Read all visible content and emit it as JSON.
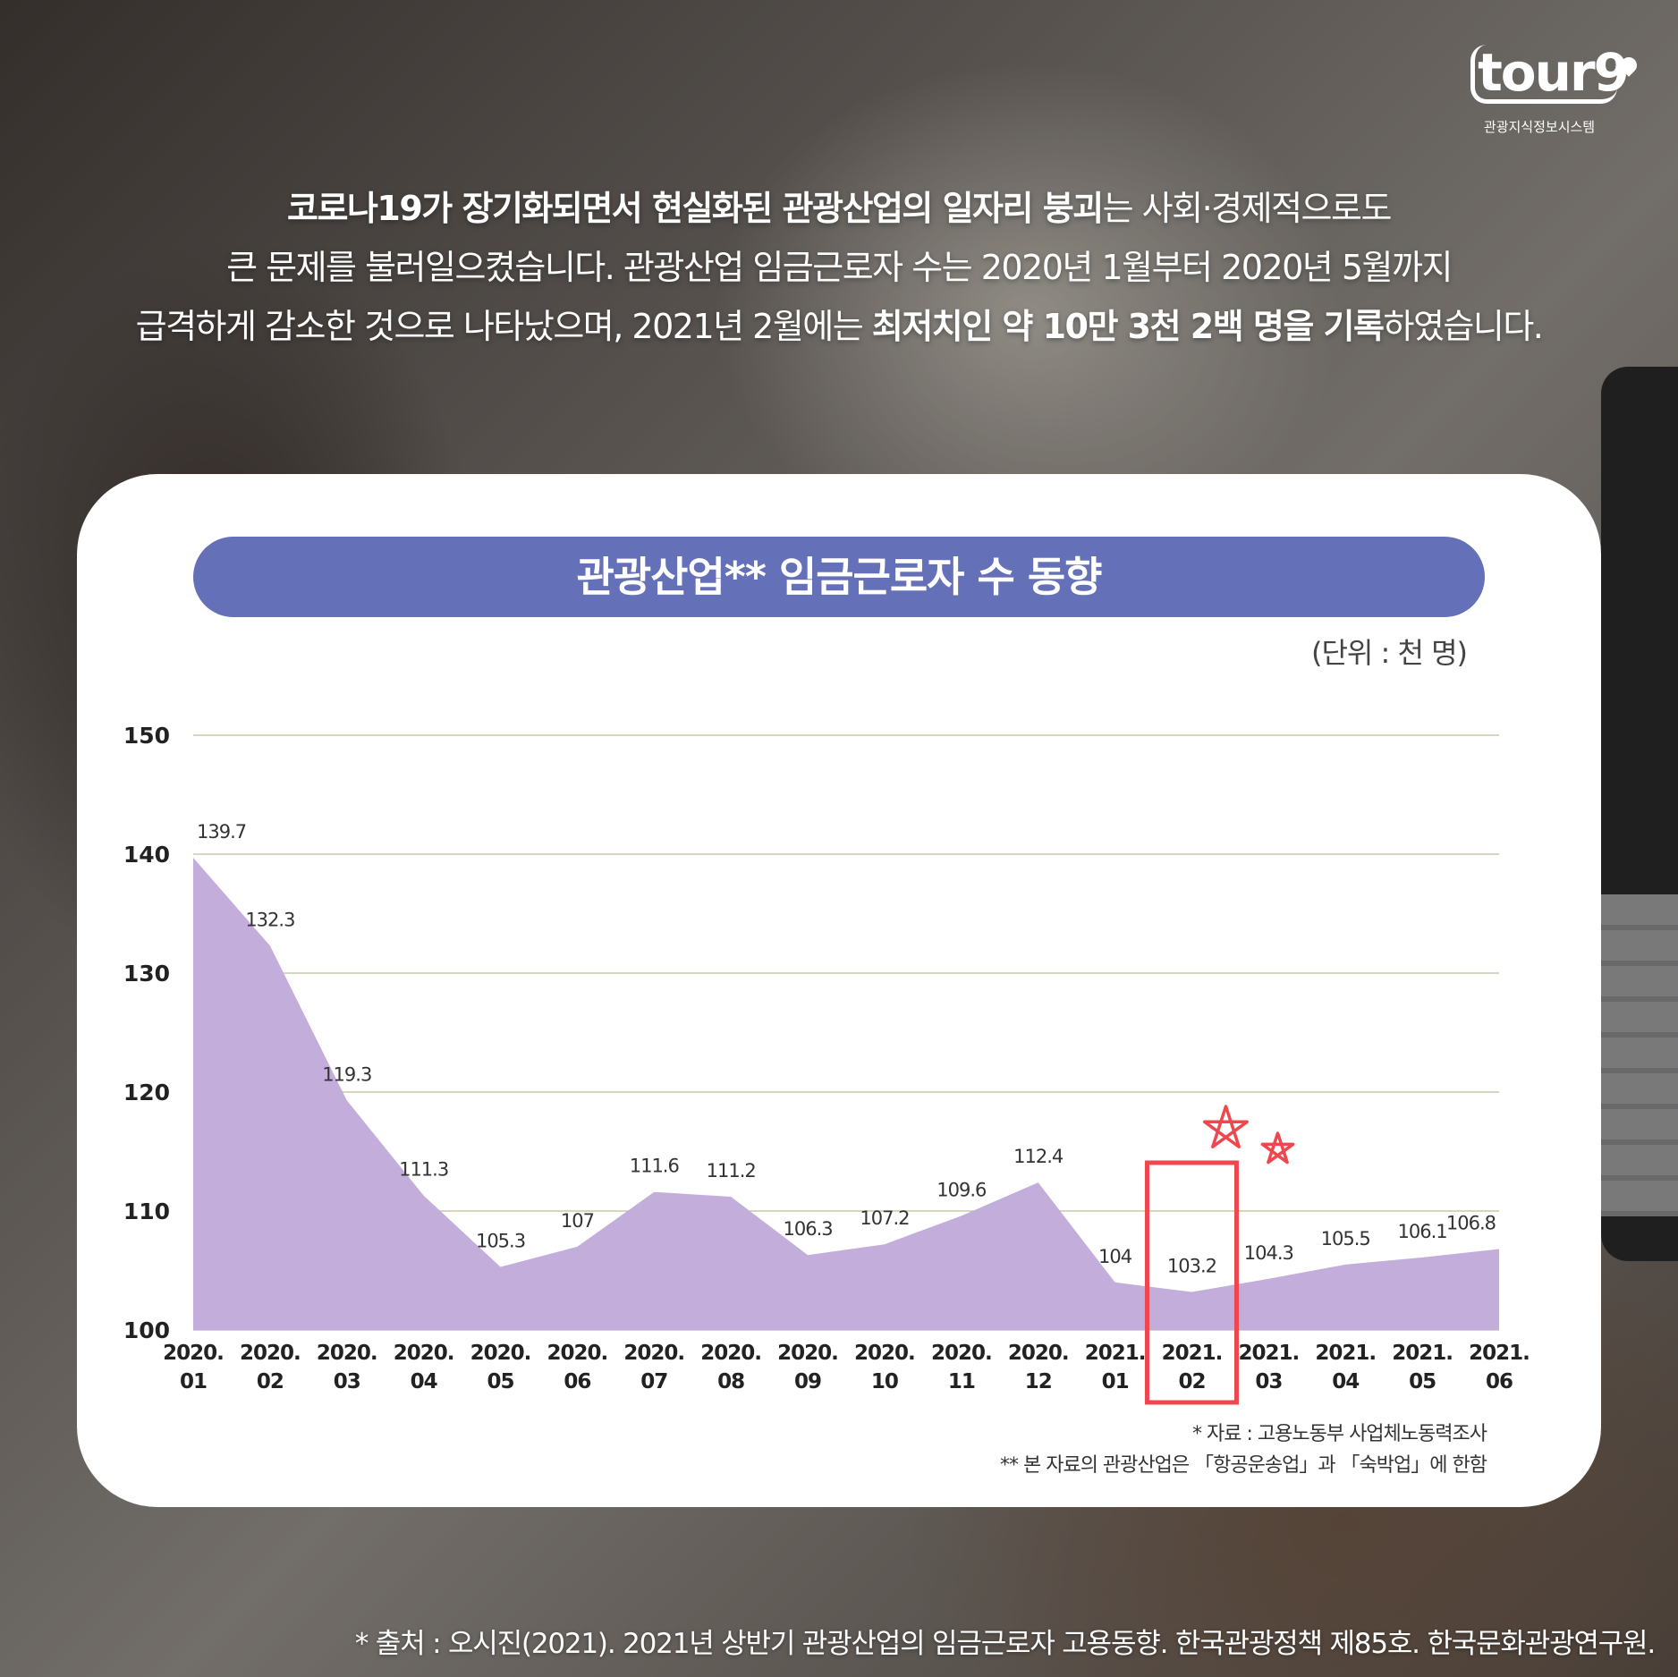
{
  "logo": {
    "wordmark": "tour9",
    "subtitle": "관광지식정보시스템"
  },
  "intro": {
    "line1": [
      {
        "text": "코로나19가 장기화되면서 현실화된 관광산업의 일자리 붕괴",
        "bold": true
      },
      {
        "text": "는 사회·경제적으로도",
        "bold": false
      }
    ],
    "line2": [
      {
        "text": "큰 문제를 불러일으켰습니다. 관광산업 임금근로자 수는 2020년 1월부터 2020년 5월까지",
        "bold": false
      }
    ],
    "line3": [
      {
        "text": "급격하게 감소한 것으로 나타났으며, 2021년 2월에는 ",
        "bold": false
      },
      {
        "text": "최저치인 약 10만 3천 2백 명을 기록",
        "bold": true
      },
      {
        "text": "하였습니다.",
        "bold": false
      }
    ]
  },
  "chart_data": {
    "type": "area",
    "title": "관광산업** 임금근로자 수 동향",
    "unit_label": "(단위 : 천 명)",
    "categories": [
      [
        "2020.",
        "01"
      ],
      [
        "2020.",
        "02"
      ],
      [
        "2020.",
        "03"
      ],
      [
        "2020.",
        "04"
      ],
      [
        "2020.",
        "05"
      ],
      [
        "2020.",
        "06"
      ],
      [
        "2020.",
        "07"
      ],
      [
        "2020.",
        "08"
      ],
      [
        "2020.",
        "09"
      ],
      [
        "2020.",
        "10"
      ],
      [
        "2020.",
        "11"
      ],
      [
        "2020.",
        "12"
      ],
      [
        "2021.",
        "01"
      ],
      [
        "2021.",
        "02"
      ],
      [
        "2021.",
        "03"
      ],
      [
        "2021.",
        "04"
      ],
      [
        "2021.",
        "05"
      ],
      [
        "2021.",
        "06"
      ]
    ],
    "values": [
      139.7,
      132.3,
      119.3,
      111.3,
      105.3,
      107,
      111.6,
      111.2,
      106.3,
      107.2,
      109.6,
      112.4,
      104,
      103.2,
      104.3,
      105.5,
      106.1,
      106.8
    ],
    "value_labels": [
      "139.7",
      "132.3",
      "119.3",
      "111.3",
      "105.3",
      "107",
      "111.6",
      "111.2",
      "106.3",
      "107.2",
      "109.6",
      "112.4",
      "104",
      "103.2",
      "104.3",
      "105.5",
      "106.1",
      "106.8"
    ],
    "y_ticks": [
      100,
      110,
      120,
      130,
      140,
      150
    ],
    "ylim": [
      100,
      150
    ],
    "grid": true,
    "highlight_index": 13,
    "colors": {
      "area": "#c3aedb",
      "grid": "#c8c8a8",
      "highlight": "#f0474f",
      "title_bar": "#6470b8"
    }
  },
  "notes": [
    "* 자료 : 고용노동부 사업체노동력조사",
    "** 본 자료의 관광산업은 「항공운송업」과 「숙박업」에 한함"
  ],
  "source": "* 출처 : 오시진(2021). 2021년 상반기 관광산업의 임금근로자 고용동향. 한국관광정책 제85호. 한국문화관광연구원."
}
